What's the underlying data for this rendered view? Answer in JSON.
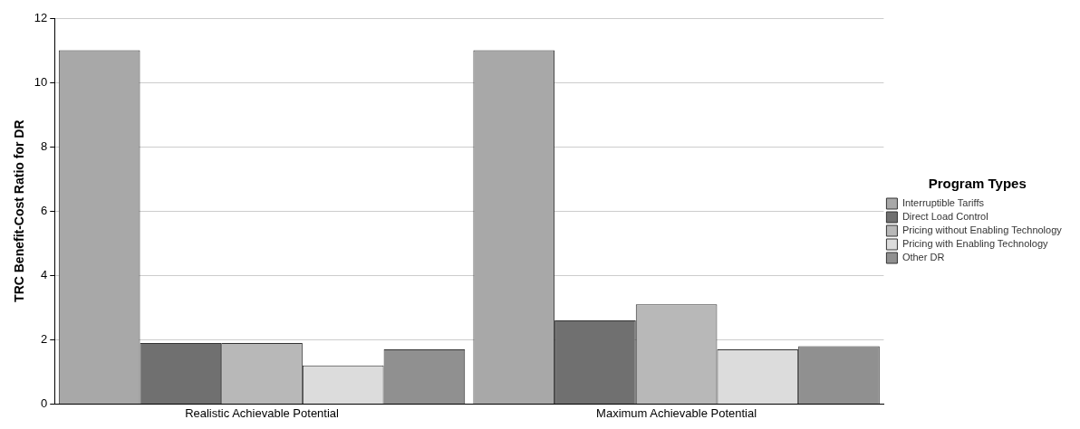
{
  "chart_data": {
    "type": "bar",
    "ylabel": "TRC Benefit-Cost Ratio for DR",
    "legend_title": "Program Types",
    "legend": "right",
    "categories": [
      "Realistic Achievable Potential",
      "Maximum Achievable Potential"
    ],
    "series": [
      {
        "name": "Interruptible Tariffs",
        "color": "#a8a8a8",
        "values": [
          11,
          11
        ]
      },
      {
        "name": "Direct Load Control",
        "color": "#707070",
        "values": [
          1.9,
          2.6
        ]
      },
      {
        "name": "Pricing without Enabling Technology",
        "color": "#b8b8b8",
        "values": [
          1.9,
          3.1
        ]
      },
      {
        "name": "Pricing with Enabling Technology",
        "color": "#dcdcdc",
        "values": [
          1.2,
          1.7
        ]
      },
      {
        "name": "Other DR",
        "color": "#909090",
        "values": [
          1.7,
          1.8
        ]
      }
    ],
    "ylim": [
      0,
      12
    ],
    "yticks": [
      0,
      2,
      4,
      6,
      8,
      10,
      12
    ],
    "grid": "y"
  }
}
